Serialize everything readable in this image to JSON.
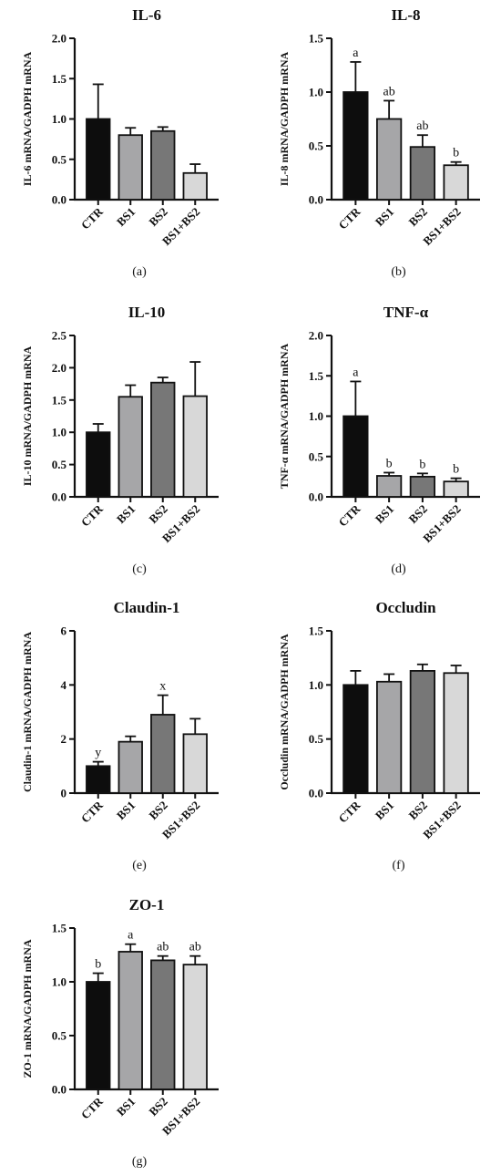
{
  "chart_data": [
    {
      "type": "bar",
      "panel": "(a)",
      "title": "IL-6",
      "ylabel": "IL-6 mRNA/GADPH mRNA",
      "categories": [
        "CTR",
        "BS1",
        "BS2",
        "BS1+BS2"
      ],
      "values": [
        1.0,
        0.8,
        0.85,
        0.33
      ],
      "errors": [
        0.43,
        0.09,
        0.05,
        0.11
      ],
      "letters": [
        "",
        "",
        "",
        ""
      ],
      "ylim": [
        0,
        2.0
      ],
      "yticks": [
        "0.0",
        "0.5",
        "1.0",
        "1.5",
        "2.0"
      ],
      "colors": [
        "#0d0d0d",
        "#a6a6a8",
        "#777777",
        "#d8d8d8"
      ]
    },
    {
      "type": "bar",
      "panel": "(b)",
      "title": "IL-8",
      "ylabel": "IL-8 mRNA/GADPH mRNA",
      "categories": [
        "CTR",
        "BS1",
        "BS2",
        "BS1+BS2"
      ],
      "values": [
        1.0,
        0.75,
        0.49,
        0.32
      ],
      "errors": [
        0.28,
        0.17,
        0.11,
        0.03
      ],
      "letters": [
        "a",
        "ab",
        "ab",
        "b"
      ],
      "ylim": [
        0,
        1.5
      ],
      "yticks": [
        "0.0",
        "0.5",
        "1.0",
        "1.5"
      ],
      "colors": [
        "#0d0d0d",
        "#a6a6a8",
        "#777777",
        "#d8d8d8"
      ]
    },
    {
      "type": "bar",
      "panel": "(c)",
      "title": "IL-10",
      "ylabel": "IL-10 mRNA/GADPH mRNA",
      "categories": [
        "CTR",
        "BS1",
        "BS2",
        "BS1+BS2"
      ],
      "values": [
        1.0,
        1.55,
        1.77,
        1.56
      ],
      "errors": [
        0.13,
        0.18,
        0.08,
        0.53
      ],
      "letters": [
        "",
        "",
        "",
        ""
      ],
      "ylim": [
        0,
        2.5
      ],
      "yticks": [
        "0.0",
        "0.5",
        "1.0",
        "1.5",
        "2.0",
        "2.5"
      ],
      "colors": [
        "#0d0d0d",
        "#a6a6a8",
        "#777777",
        "#d8d8d8"
      ]
    },
    {
      "type": "bar",
      "panel": "(d)",
      "title": "TNF-α",
      "ylabel": "TNF-α mRNA/GADPH mRNA",
      "categories": [
        "CTR",
        "BS1",
        "BS2",
        "BS1+BS2"
      ],
      "values": [
        1.0,
        0.26,
        0.25,
        0.19
      ],
      "errors": [
        0.43,
        0.04,
        0.04,
        0.04
      ],
      "letters": [
        "a",
        "b",
        "b",
        "b"
      ],
      "ylim": [
        0,
        2.0
      ],
      "yticks": [
        "0.0",
        "0.5",
        "1.0",
        "1.5",
        "2.0"
      ],
      "colors": [
        "#0d0d0d",
        "#a6a6a8",
        "#777777",
        "#d8d8d8"
      ]
    },
    {
      "type": "bar",
      "panel": "(e)",
      "title": "Claudin-1",
      "ylabel": "Claudin-1 mRNA/GADPH mRNA",
      "categories": [
        "CTR",
        "BS1",
        "BS2",
        "BS1+BS2"
      ],
      "values": [
        1.0,
        1.9,
        2.9,
        2.18
      ],
      "errors": [
        0.16,
        0.2,
        0.72,
        0.57
      ],
      "letters": [
        "y",
        "",
        "x",
        ""
      ],
      "ylim": [
        0,
        6
      ],
      "yticks": [
        "0",
        "2",
        "4",
        "6"
      ],
      "colors": [
        "#0d0d0d",
        "#a6a6a8",
        "#777777",
        "#d8d8d8"
      ]
    },
    {
      "type": "bar",
      "panel": "(f)",
      "title": "Occludin",
      "ylabel": "Occludin mRNA/GADPH mRNA",
      "categories": [
        "CTR",
        "BS1",
        "BS2",
        "BS1+BS2"
      ],
      "values": [
        1.0,
        1.03,
        1.13,
        1.11
      ],
      "errors": [
        0.13,
        0.07,
        0.06,
        0.07
      ],
      "letters": [
        "",
        "",
        "",
        ""
      ],
      "ylim": [
        0,
        1.5
      ],
      "yticks": [
        "0.0",
        "0.5",
        "1.0",
        "1.5"
      ],
      "colors": [
        "#0d0d0d",
        "#a6a6a8",
        "#777777",
        "#d8d8d8"
      ]
    },
    {
      "type": "bar",
      "panel": "(g)",
      "title": "ZO-1",
      "ylabel": "ZO-1 mRNA/GADPH mRNA",
      "categories": [
        "CTR",
        "BS1",
        "BS2",
        "BS1+BS2"
      ],
      "values": [
        1.0,
        1.28,
        1.2,
        1.16
      ],
      "errors": [
        0.08,
        0.07,
        0.04,
        0.08
      ],
      "letters": [
        "b",
        "a",
        "ab",
        "ab"
      ],
      "ylim": [
        0,
        1.5
      ],
      "yticks": [
        "0.0",
        "0.5",
        "1.0",
        "1.5"
      ],
      "colors": [
        "#0d0d0d",
        "#a6a6a8",
        "#777777",
        "#d8d8d8"
      ]
    }
  ]
}
